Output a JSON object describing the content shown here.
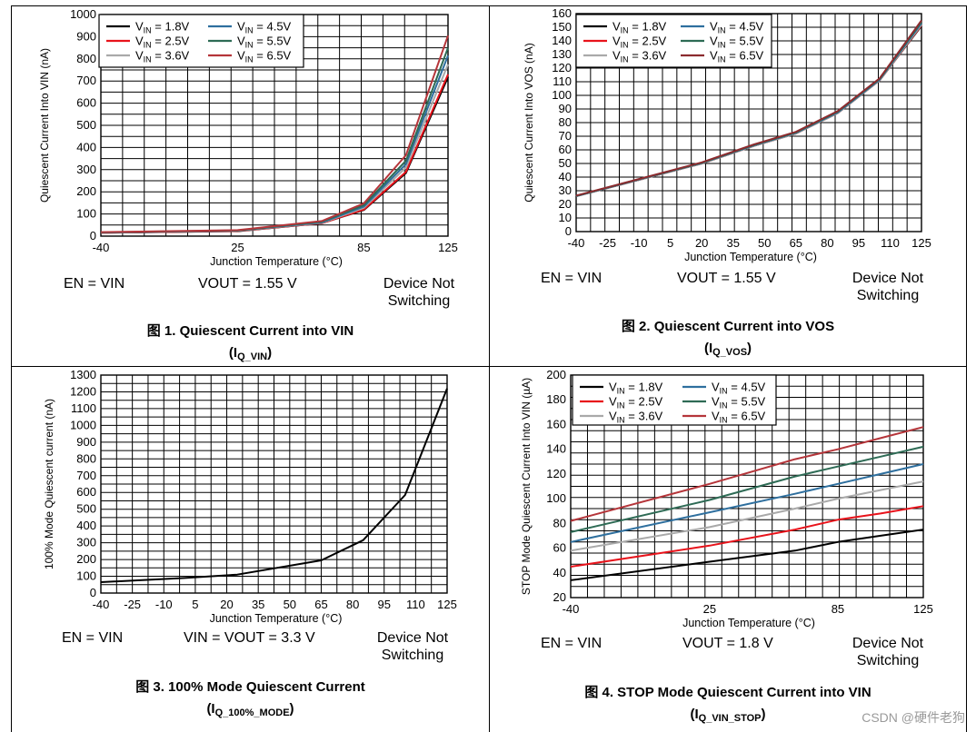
{
  "charts": [
    {
      "id": "fig1",
      "chart_data": {
        "type": "line",
        "ylabel": "Quiescent Current Into VIN (nA)",
        "xlabel": "Junction Temperature (°C)",
        "xlim": [
          -40,
          125
        ],
        "ylim": [
          0,
          1000
        ],
        "x_ticks": [
          -40,
          25,
          85,
          125
        ],
        "y_ticks": [
          0,
          100,
          200,
          300,
          400,
          500,
          600,
          700,
          800,
          900,
          1000
        ],
        "legend": {
          "placement": "top-left",
          "columns": 2,
          "entries": [
            {
              "pre": "V",
              "sub": "IN",
              "post": " = 1.8V",
              "color": "#000000"
            },
            {
              "pre": "V",
              "sub": "IN",
              "post": " = 2.5V",
              "color": "#e8131b"
            },
            {
              "pre": "V",
              "sub": "IN",
              "post": " = 3.6V",
              "color": "#a9a9a9"
            },
            {
              "pre": "V",
              "sub": "IN",
              "post": " = 4.5V",
              "color": "#2e6f9e"
            },
            {
              "pre": "V",
              "sub": "IN",
              "post": " = 5.5V",
              "color": "#2e6b55"
            },
            {
              "pre": "V",
              "sub": "IN",
              "post": " = 6.5V",
              "color": "#b5353a"
            }
          ]
        },
        "series": [
          {
            "name": "VIN = 1.8V",
            "color": "#000000",
            "x": [
              -40,
              25,
              65,
              85,
              105,
              125
            ],
            "y": [
              15,
              22,
              58,
              118,
              285,
              718
            ]
          },
          {
            "name": "VIN = 2.5V",
            "color": "#e8131b",
            "x": [
              -40,
              25,
              65,
              85,
              105,
              125
            ],
            "y": [
              15,
              23,
              58,
              120,
              290,
              730
            ]
          },
          {
            "name": "VIN = 3.6V",
            "color": "#a9a9a9",
            "x": [
              -40,
              25,
              65,
              85,
              105,
              125
            ],
            "y": [
              16,
              24,
              60,
              128,
              310,
              775
            ]
          },
          {
            "name": "VIN = 4.5V",
            "color": "#2e6f9e",
            "x": [
              -40,
              25,
              65,
              85,
              105,
              125
            ],
            "y": [
              16,
              25,
              62,
              133,
              325,
              815
            ]
          },
          {
            "name": "VIN = 5.5V",
            "color": "#2e6b55",
            "x": [
              -40,
              25,
              65,
              85,
              105,
              125
            ],
            "y": [
              17,
              26,
              65,
              140,
              340,
              850
            ]
          },
          {
            "name": "VIN = 6.5V",
            "color": "#b5353a",
            "x": [
              -40,
              25,
              65,
              85,
              105,
              125
            ],
            "y": [
              18,
              27,
              68,
              148,
              365,
              905
            ]
          }
        ]
      },
      "conditions": {
        "en": "EN = VIN",
        "vout": "VOUT = 1.55 V",
        "switch_line1": "Device Not",
        "switch_line2": "Switching"
      },
      "caption": {
        "title": "图 1. Quiescent Current into VIN",
        "sym_open": "(I",
        "sym_sub": "Q_VIN",
        "sym_close": ")"
      }
    },
    {
      "id": "fig2",
      "chart_data": {
        "type": "line",
        "ylabel": "Quiescent Current Into VOS (nA)",
        "xlabel": "Junction Temperature (°C)",
        "xlim": [
          -40,
          125
        ],
        "ylim": [
          0,
          160
        ],
        "x_ticks": [
          -40,
          -25,
          -10,
          5,
          20,
          35,
          50,
          65,
          80,
          95,
          110,
          125
        ],
        "y_ticks": [
          0,
          10,
          20,
          30,
          40,
          50,
          60,
          70,
          80,
          90,
          100,
          110,
          120,
          130,
          140,
          150,
          160
        ],
        "legend": {
          "placement": "top-left",
          "columns": 2,
          "entries": [
            {
              "pre": "V",
              "sub": "IN",
              "post": " = 1.8V",
              "color": "#000000"
            },
            {
              "pre": "V",
              "sub": "IN",
              "post": " = 2.5V",
              "color": "#e8131b"
            },
            {
              "pre": "V",
              "sub": "IN",
              "post": " = 3.6V",
              "color": "#a9a9a9"
            },
            {
              "pre": "V",
              "sub": "IN",
              "post": " = 4.5V",
              "color": "#2e6f9e"
            },
            {
              "pre": "V",
              "sub": "IN",
              "post": " = 5.5V",
              "color": "#2e6b55"
            },
            {
              "pre": "V",
              "sub": "IN",
              "post": " = 6.5V",
              "color": "#8c2b2f"
            }
          ]
        },
        "series": [
          {
            "name": "VIN = 1.8V",
            "color": "#000000",
            "x": [
              -40,
              -10,
              20,
              45,
              65,
              85,
              105,
              125
            ],
            "y": [
              26,
              38,
              50,
              63,
              72,
              87,
              111,
              151
            ]
          },
          {
            "name": "VIN = 2.5V",
            "color": "#e8131b",
            "x": [
              -40,
              -10,
              20,
              45,
              65,
              85,
              105,
              125
            ],
            "y": [
              26,
              38,
              50,
              63,
              72,
              87,
              111,
              151.5
            ]
          },
          {
            "name": "VIN = 3.6V",
            "color": "#a9a9a9",
            "x": [
              -40,
              -10,
              20,
              45,
              65,
              85,
              105,
              125
            ],
            "y": [
              26,
              38,
              50,
              63,
              72,
              87,
              111,
              152
            ]
          },
          {
            "name": "VIN = 4.5V",
            "color": "#2e6f9e",
            "x": [
              -40,
              -10,
              20,
              45,
              65,
              85,
              105,
              125
            ],
            "y": [
              26,
              38.2,
              50.3,
              63.3,
              72.5,
              87.5,
              111.5,
              153
            ]
          },
          {
            "name": "VIN = 5.5V",
            "color": "#2e6b55",
            "x": [
              -40,
              -10,
              20,
              45,
              65,
              85,
              105,
              125
            ],
            "y": [
              26.2,
              38.4,
              50.5,
              63.6,
              72.8,
              88,
              112,
              154
            ]
          },
          {
            "name": "VIN = 6.5V",
            "color": "#8c2b2f",
            "x": [
              -40,
              -10,
              20,
              45,
              65,
              85,
              105,
              125
            ],
            "y": [
              26.4,
              38.6,
              50.8,
              64,
              73.2,
              88.5,
              112.5,
              155
            ]
          }
        ]
      },
      "conditions": {
        "en": "EN = VIN",
        "vout": "VOUT = 1.55 V",
        "switch_line1": "Device Not",
        "switch_line2": "Switching"
      },
      "caption": {
        "title": "图 2. Quiescent Current into VOS",
        "sym_open": "(I",
        "sym_sub": "Q_VOS",
        "sym_close": ")"
      }
    },
    {
      "id": "fig3",
      "chart_data": {
        "type": "line",
        "ylabel": "100% Mode Quiescent current (nA)",
        "xlabel": "Junction Temperature (°C)",
        "xlim": [
          -40,
          125
        ],
        "ylim": [
          0,
          1300
        ],
        "x_ticks": [
          -40,
          -25,
          -10,
          5,
          20,
          35,
          50,
          65,
          80,
          95,
          110,
          125
        ],
        "y_ticks": [
          0,
          100,
          200,
          300,
          400,
          500,
          600,
          700,
          800,
          900,
          1000,
          1100,
          1200,
          1300
        ],
        "series": [
          {
            "name": "100% mode",
            "color": "#000000",
            "x": [
              -40,
              0,
              25,
              65,
              85,
              105,
              125
            ],
            "y": [
              65,
              90,
              110,
              195,
              315,
              585,
              1220
            ]
          }
        ]
      },
      "conditions": {
        "en": "EN = VIN",
        "vout": "VIN = VOUT = 3.3 V",
        "switch_line1": "Device Not",
        "switch_line2": "Switching"
      },
      "caption": {
        "title": "图 3. 100% Mode Quiescent Current",
        "sym_open": "(I",
        "sym_sub": "Q_100%_MODE",
        "sym_close": ")"
      }
    },
    {
      "id": "fig4",
      "chart_data": {
        "type": "line",
        "ylabel": "STOP Mode Quiescent Current Into VIN (µA)",
        "xlabel": "Junction Temperature (°C)",
        "xlim": [
          -40,
          125
        ],
        "ylim": [
          20,
          200
        ],
        "x_ticks": [
          -40,
          25,
          85,
          125
        ],
        "y_ticks": [
          20,
          40,
          60,
          80,
          100,
          120,
          140,
          160,
          180,
          200
        ],
        "legend": {
          "placement": "top-left",
          "columns": 2,
          "entries": [
            {
              "pre": "V",
              "sub": "IN",
              "post": " = 1.8V",
              "color": "#000000"
            },
            {
              "pre": "V",
              "sub": "IN",
              "post": " = 2.5V",
              "color": "#e8131b"
            },
            {
              "pre": "V",
              "sub": "IN",
              "post": " = 3.6V",
              "color": "#a9a9a9"
            },
            {
              "pre": "V",
              "sub": "IN",
              "post": " = 4.5V",
              "color": "#2e6f9e"
            },
            {
              "pre": "V",
              "sub": "IN",
              "post": " = 5.5V",
              "color": "#2e6b55"
            },
            {
              "pre": "V",
              "sub": "IN",
              "post": " = 6.5V",
              "color": "#b5353a"
            }
          ]
        },
        "series": [
          {
            "name": "VIN = 1.8V",
            "color": "#000000",
            "x": [
              -40,
              25,
              65,
              85,
              105,
              125
            ],
            "y": [
              34,
              49,
              58,
              65,
              70,
              75
            ]
          },
          {
            "name": "VIN = 2.5V",
            "color": "#e8131b",
            "x": [
              -40,
              25,
              65,
              85,
              105,
              125
            ],
            "y": [
              45,
              62,
              75,
              83,
              88,
              94
            ]
          },
          {
            "name": "VIN = 3.6V",
            "color": "#a9a9a9",
            "x": [
              -40,
              25,
              65,
              85,
              105,
              125
            ],
            "y": [
              58,
              77,
              92,
              100,
              107,
              114
            ]
          },
          {
            "name": "VIN = 4.5V",
            "color": "#2e6f9e",
            "x": [
              -40,
              25,
              65,
              85,
              105,
              125
            ],
            "y": [
              65,
              89,
              104,
              112,
              120,
              128
            ]
          },
          {
            "name": "VIN = 5.5V",
            "color": "#2e6b55",
            "x": [
              -40,
              25,
              65,
              85,
              105,
              125
            ],
            "y": [
              73,
              99,
              118,
              126,
              134,
              142
            ]
          },
          {
            "name": "VIN = 6.5V",
            "color": "#b5353a",
            "x": [
              -40,
              25,
              65,
              85,
              105,
              125
            ],
            "y": [
              82,
              112,
              132,
              140,
              149,
              158
            ]
          }
        ]
      },
      "conditions": {
        "en": "EN = VIN",
        "vout": "VOUT = 1.8 V",
        "switch_line1": "Device Not",
        "switch_line2": "Switching"
      },
      "caption": {
        "title": "图 4. STOP Mode Quiescent Current into VIN",
        "sym_open": "(I",
        "sym_sub": "Q_VIN_STOP",
        "sym_close": ")"
      }
    }
  ],
  "watermark": "CSDN @硬件老狗"
}
